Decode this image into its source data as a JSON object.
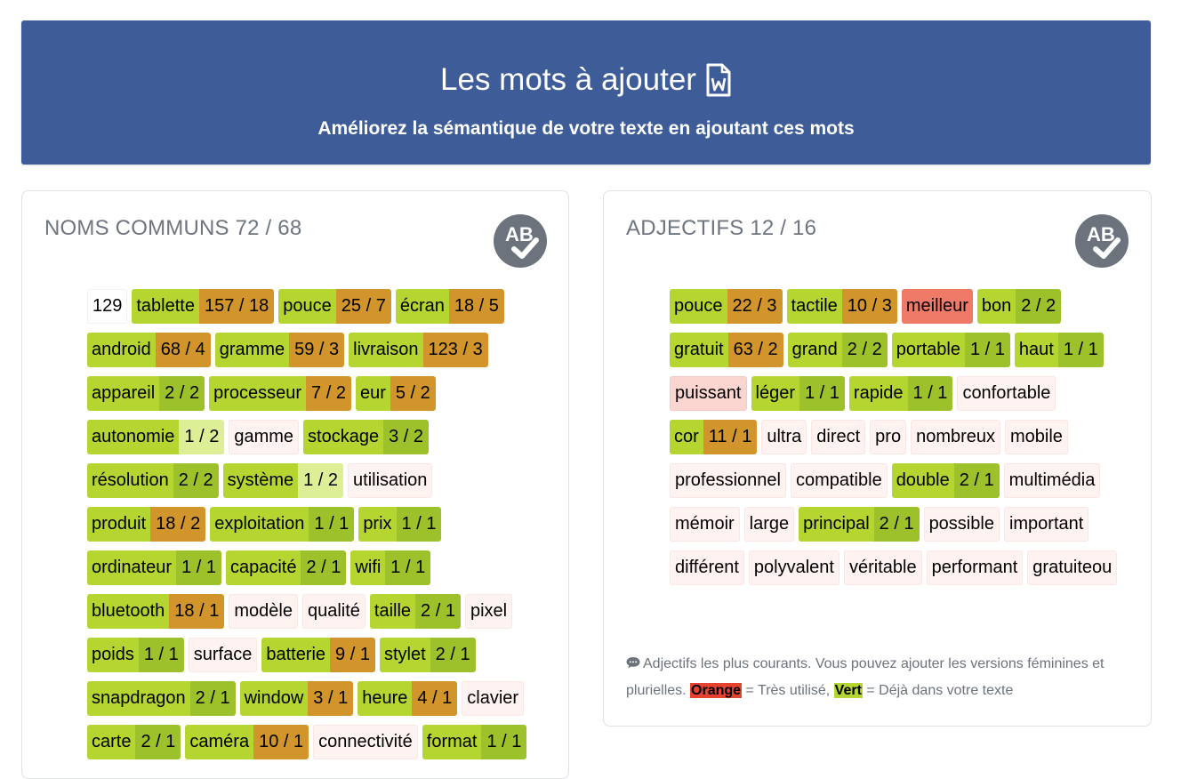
{
  "header": {
    "title": "Les mots à ajouter",
    "subtitle": "Améliorez la sémantique de votre texte en ajoutant ces mots",
    "doc_icon": "word-document-icon"
  },
  "colors": {
    "header_bg": "#3d5c98",
    "green": "#b5d530",
    "dark_green": "#9dc12a",
    "light_green": "#dcee96",
    "orange": "#d1952b",
    "red": "#ef7a68",
    "pink": "#fff3f2"
  },
  "noms": {
    "title": "NOMS COMMUNS 72 / 68",
    "icon": "ab-check-icon",
    "tags": [
      {
        "word": "129",
        "count": "",
        "style": "plain",
        "count_style": ""
      },
      {
        "word": "tablette",
        "count": "157 / 18",
        "style": "green",
        "count_style": "orange"
      },
      {
        "word": "pouce",
        "count": "25 / 7",
        "style": "green",
        "count_style": "orange"
      },
      {
        "word": "écran",
        "count": "18 / 5",
        "style": "green",
        "count_style": "orange"
      },
      {
        "word": "android",
        "count": "68 / 4",
        "style": "green",
        "count_style": "orange"
      },
      {
        "word": "gramme",
        "count": "59 / 3",
        "style": "green",
        "count_style": "orange"
      },
      {
        "word": "livraison",
        "count": "123 / 3",
        "style": "green",
        "count_style": "orange"
      },
      {
        "word": "appareil",
        "count": "2 / 2",
        "style": "green",
        "count_style": "dgreen"
      },
      {
        "word": "processeur",
        "count": "7 / 2",
        "style": "green",
        "count_style": "orange"
      },
      {
        "word": "eur",
        "count": "5 / 2",
        "style": "green",
        "count_style": "orange"
      },
      {
        "word": "autonomie",
        "count": "1 / 2",
        "style": "green",
        "count_style": "lgreen"
      },
      {
        "word": "gamme",
        "count": "",
        "style": "pink",
        "count_style": ""
      },
      {
        "word": "stockage",
        "count": "3 / 2",
        "style": "green",
        "count_style": "dgreen"
      },
      {
        "word": "résolution",
        "count": "2 / 2",
        "style": "green",
        "count_style": "dgreen"
      },
      {
        "word": "système",
        "count": "1 / 2",
        "style": "green",
        "count_style": "lgreen"
      },
      {
        "word": "utilisation",
        "count": "",
        "style": "pink",
        "count_style": ""
      },
      {
        "word": "produit",
        "count": "18 / 2",
        "style": "green",
        "count_style": "orange"
      },
      {
        "word": "exploitation",
        "count": "1 / 1",
        "style": "green",
        "count_style": "dgreen"
      },
      {
        "word": "prix",
        "count": "1 / 1",
        "style": "green",
        "count_style": "dgreen"
      },
      {
        "word": "ordinateur",
        "count": "1 / 1",
        "style": "green",
        "count_style": "dgreen"
      },
      {
        "word": "capacité",
        "count": "2 / 1",
        "style": "green",
        "count_style": "dgreen"
      },
      {
        "word": "wifi",
        "count": "1 / 1",
        "style": "green",
        "count_style": "dgreen"
      },
      {
        "word": "bluetooth",
        "count": "18 / 1",
        "style": "green",
        "count_style": "orange"
      },
      {
        "word": "modèle",
        "count": "",
        "style": "pink",
        "count_style": ""
      },
      {
        "word": "qualité",
        "count": "",
        "style": "pink",
        "count_style": ""
      },
      {
        "word": "taille",
        "count": "2 / 1",
        "style": "green",
        "count_style": "dgreen"
      },
      {
        "word": "pixel",
        "count": "",
        "style": "pink",
        "count_style": ""
      },
      {
        "word": "poids",
        "count": "1 / 1",
        "style": "green",
        "count_style": "dgreen"
      },
      {
        "word": "surface",
        "count": "",
        "style": "pink",
        "count_style": ""
      },
      {
        "word": "batterie",
        "count": "9 / 1",
        "style": "green",
        "count_style": "orange"
      },
      {
        "word": "stylet",
        "count": "2 / 1",
        "style": "green",
        "count_style": "dgreen"
      },
      {
        "word": "snapdragon",
        "count": "2 / 1",
        "style": "green",
        "count_style": "dgreen"
      },
      {
        "word": "window",
        "count": "3 / 1",
        "style": "green",
        "count_style": "orange"
      },
      {
        "word": "heure",
        "count": "4 / 1",
        "style": "green",
        "count_style": "orange"
      },
      {
        "word": "clavier",
        "count": "",
        "style": "pink",
        "count_style": ""
      },
      {
        "word": "carte",
        "count": "2 / 1",
        "style": "green",
        "count_style": "dgreen"
      },
      {
        "word": "caméra",
        "count": "10 / 1",
        "style": "green",
        "count_style": "orange"
      },
      {
        "word": "connectivité",
        "count": "",
        "style": "pink",
        "count_style": ""
      },
      {
        "word": "format",
        "count": "1 / 1",
        "style": "green",
        "count_style": "dgreen"
      }
    ]
  },
  "adjectifs": {
    "title": "ADJECTIFS 12 / 16",
    "icon": "ab-check-icon",
    "tags": [
      {
        "word": "pouce",
        "count": "22 / 3",
        "style": "green",
        "count_style": "orange"
      },
      {
        "word": "tactile",
        "count": "10 / 3",
        "style": "green",
        "count_style": "orange"
      },
      {
        "word": "meilleur",
        "count": "",
        "style": "red",
        "count_style": ""
      },
      {
        "word": "bon",
        "count": "2 / 2",
        "style": "green",
        "count_style": "dgreen"
      },
      {
        "word": "gratuit",
        "count": "63 / 2",
        "style": "green",
        "count_style": "orange"
      },
      {
        "word": "grand",
        "count": "2 / 2",
        "style": "green",
        "count_style": "dgreen"
      },
      {
        "word": "portable",
        "count": "1 / 1",
        "style": "green",
        "count_style": "dgreen"
      },
      {
        "word": "haut",
        "count": "1 / 1",
        "style": "green",
        "count_style": "dgreen"
      },
      {
        "word": "puissant",
        "count": "",
        "style": "pinkstrong",
        "count_style": ""
      },
      {
        "word": "léger",
        "count": "1 / 1",
        "style": "green",
        "count_style": "dgreen"
      },
      {
        "word": "rapide",
        "count": "1 / 1",
        "style": "green",
        "count_style": "dgreen"
      },
      {
        "word": "confortable",
        "count": "",
        "style": "pink",
        "count_style": ""
      },
      {
        "word": "cor",
        "count": "11 / 1",
        "style": "green",
        "count_style": "orange"
      },
      {
        "word": "ultra",
        "count": "",
        "style": "pink",
        "count_style": ""
      },
      {
        "word": "direct",
        "count": "",
        "style": "pink",
        "count_style": ""
      },
      {
        "word": "pro",
        "count": "",
        "style": "pink",
        "count_style": ""
      },
      {
        "word": "nombreux",
        "count": "",
        "style": "pink",
        "count_style": ""
      },
      {
        "word": "mobile",
        "count": "",
        "style": "pink",
        "count_style": ""
      },
      {
        "word": "professionnel",
        "count": "",
        "style": "pink",
        "count_style": ""
      },
      {
        "word": "compatible",
        "count": "",
        "style": "pink",
        "count_style": ""
      },
      {
        "word": "double",
        "count": "2 / 1",
        "style": "green",
        "count_style": "dgreen"
      },
      {
        "word": "multimédia",
        "count": "",
        "style": "pink",
        "count_style": ""
      },
      {
        "word": "mémoir",
        "count": "",
        "style": "pink",
        "count_style": ""
      },
      {
        "word": "large",
        "count": "",
        "style": "pink",
        "count_style": ""
      },
      {
        "word": "principal",
        "count": "2 / 1",
        "style": "green",
        "count_style": "dgreen"
      },
      {
        "word": "possible",
        "count": "",
        "style": "pink",
        "count_style": ""
      },
      {
        "word": "important",
        "count": "",
        "style": "pink",
        "count_style": ""
      },
      {
        "word": "différent",
        "count": "",
        "style": "pink",
        "count_style": ""
      },
      {
        "word": "polyvalent",
        "count": "",
        "style": "pink",
        "count_style": ""
      },
      {
        "word": "véritable",
        "count": "",
        "style": "pink",
        "count_style": ""
      },
      {
        "word": "performant",
        "count": "",
        "style": "pink",
        "count_style": ""
      },
      {
        "word": "gratuiteou",
        "count": "",
        "style": "pink",
        "count_style": ""
      }
    ],
    "legend": {
      "icon": "chat-bubble-icon",
      "text_1": "Adjectifs les plus courants. Vous pouvez ajouter les versions féminines et plurielles.",
      "orange_label": "Orange",
      "orange_text": "= Très utilisé,",
      "green_label": "Vert",
      "green_text": "= Déjà dans votre texte"
    }
  }
}
